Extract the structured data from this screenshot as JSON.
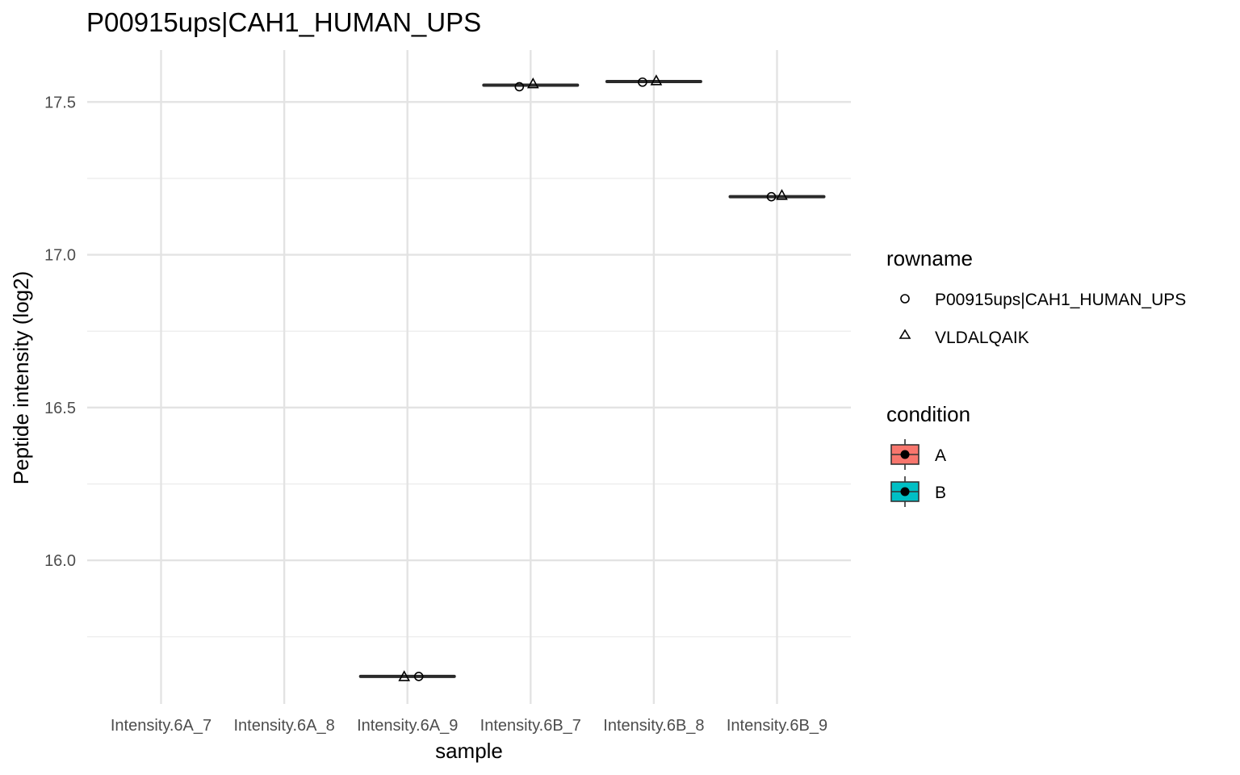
{
  "chart_data": {
    "type": "boxplot",
    "title": "P00915ups|CAH1_HUMAN_UPS",
    "xlabel": "sample",
    "ylabel": "Peptide intensity (log2)",
    "categories": [
      "Intensity.6A_7",
      "Intensity.6A_8",
      "Intensity.6A_9",
      "Intensity.6B_7",
      "Intensity.6B_8",
      "Intensity.6B_9"
    ],
    "ylim": [
      15.53,
      17.67
    ],
    "y_ticks": [
      16.0,
      16.5,
      17.0,
      17.5
    ],
    "y_tick_labels": [
      "16.0",
      "16.5",
      "17.0",
      "17.5"
    ],
    "grid": true,
    "boxes": [
      {
        "category": "Intensity.6A_9",
        "condition": "A",
        "median": 15.62
      },
      {
        "category": "Intensity.6B_7",
        "condition": "B",
        "median": 17.555
      },
      {
        "category": "Intensity.6B_8",
        "condition": "B",
        "median": 17.567
      },
      {
        "category": "Intensity.6B_9",
        "condition": "B",
        "median": 17.19
      }
    ],
    "points": [
      {
        "category": "Intensity.6A_9",
        "rowname": "P00915ups|CAH1_HUMAN_UPS",
        "y": 15.62
      },
      {
        "category": "Intensity.6A_9",
        "rowname": "VLDALQAIK",
        "y": 15.62
      },
      {
        "category": "Intensity.6B_7",
        "rowname": "P00915ups|CAH1_HUMAN_UPS",
        "y": 17.55
      },
      {
        "category": "Intensity.6B_7",
        "rowname": "VLDALQAIK",
        "y": 17.56
      },
      {
        "category": "Intensity.6B_8",
        "rowname": "P00915ups|CAH1_HUMAN_UPS",
        "y": 17.565
      },
      {
        "category": "Intensity.6B_8",
        "rowname": "VLDALQAIK",
        "y": 17.57
      },
      {
        "category": "Intensity.6B_9",
        "rowname": "P00915ups|CAH1_HUMAN_UPS",
        "y": 17.19
      },
      {
        "category": "Intensity.6B_9",
        "rowname": "VLDALQAIK",
        "y": 17.195
      }
    ],
    "legend": {
      "placement": "right",
      "rowname": {
        "title": "rowname",
        "entries": [
          {
            "label": "P00915ups|CAH1_HUMAN_UPS",
            "shape": "circle"
          },
          {
            "label": "VLDALQAIK",
            "shape": "triangle"
          }
        ]
      },
      "condition": {
        "title": "condition",
        "entries": [
          {
            "label": "A",
            "color": "#F8766D"
          },
          {
            "label": "B",
            "color": "#00BFC4"
          }
        ]
      }
    }
  }
}
